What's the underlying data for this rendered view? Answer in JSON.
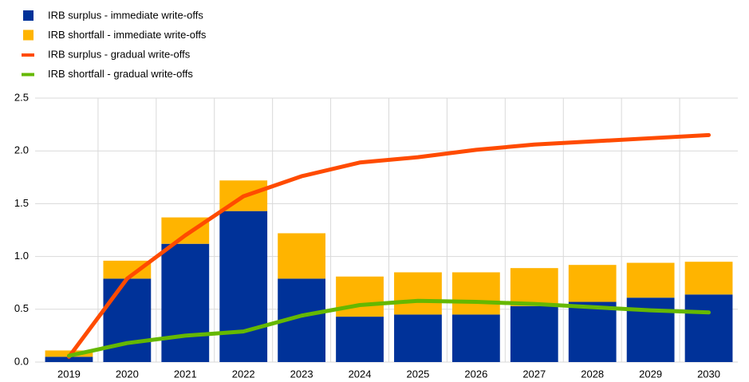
{
  "chart_data": {
    "type": "bar",
    "categories": [
      "2019",
      "2020",
      "2021",
      "2022",
      "2023",
      "2024",
      "2025",
      "2026",
      "2027",
      "2028",
      "2029",
      "2030"
    ],
    "series": [
      {
        "name": "IRB surplus - immediate write-offs",
        "color": "#003299",
        "kind": "bar",
        "values": [
          0.05,
          0.79,
          1.12,
          1.43,
          0.79,
          0.43,
          0.45,
          0.45,
          0.53,
          0.57,
          0.61,
          0.64
        ]
      },
      {
        "name": "IRB shortfall - immediate write-offs",
        "color": "#ffb400",
        "kind": "bar",
        "values": [
          0.06,
          0.17,
          0.25,
          0.29,
          0.43,
          0.38,
          0.4,
          0.4,
          0.36,
          0.35,
          0.33,
          0.31
        ]
      },
      {
        "name": "IRB surplus - gradual write-offs",
        "color": "#ff4b00",
        "kind": "line",
        "values": [
          0.05,
          0.79,
          1.2,
          1.57,
          1.76,
          1.89,
          1.94,
          2.01,
          2.06,
          2.09,
          2.12,
          2.15
        ]
      },
      {
        "name": "IRB shortfall - gradual write-offs",
        "color": "#65b800",
        "kind": "line",
        "values": [
          0.06,
          0.18,
          0.25,
          0.29,
          0.44,
          0.54,
          0.58,
          0.57,
          0.55,
          0.52,
          0.49,
          0.47
        ]
      }
    ],
    "stacked": true,
    "ylim": [
      0,
      2.5
    ],
    "yticks": [
      {
        "value": 0,
        "label": "0.0"
      },
      0.5,
      {
        "value": 1,
        "label": "1.0"
      },
      1.5,
      {
        "value": 2,
        "label": "2.0"
      },
      2.5
    ],
    "grid": true
  }
}
